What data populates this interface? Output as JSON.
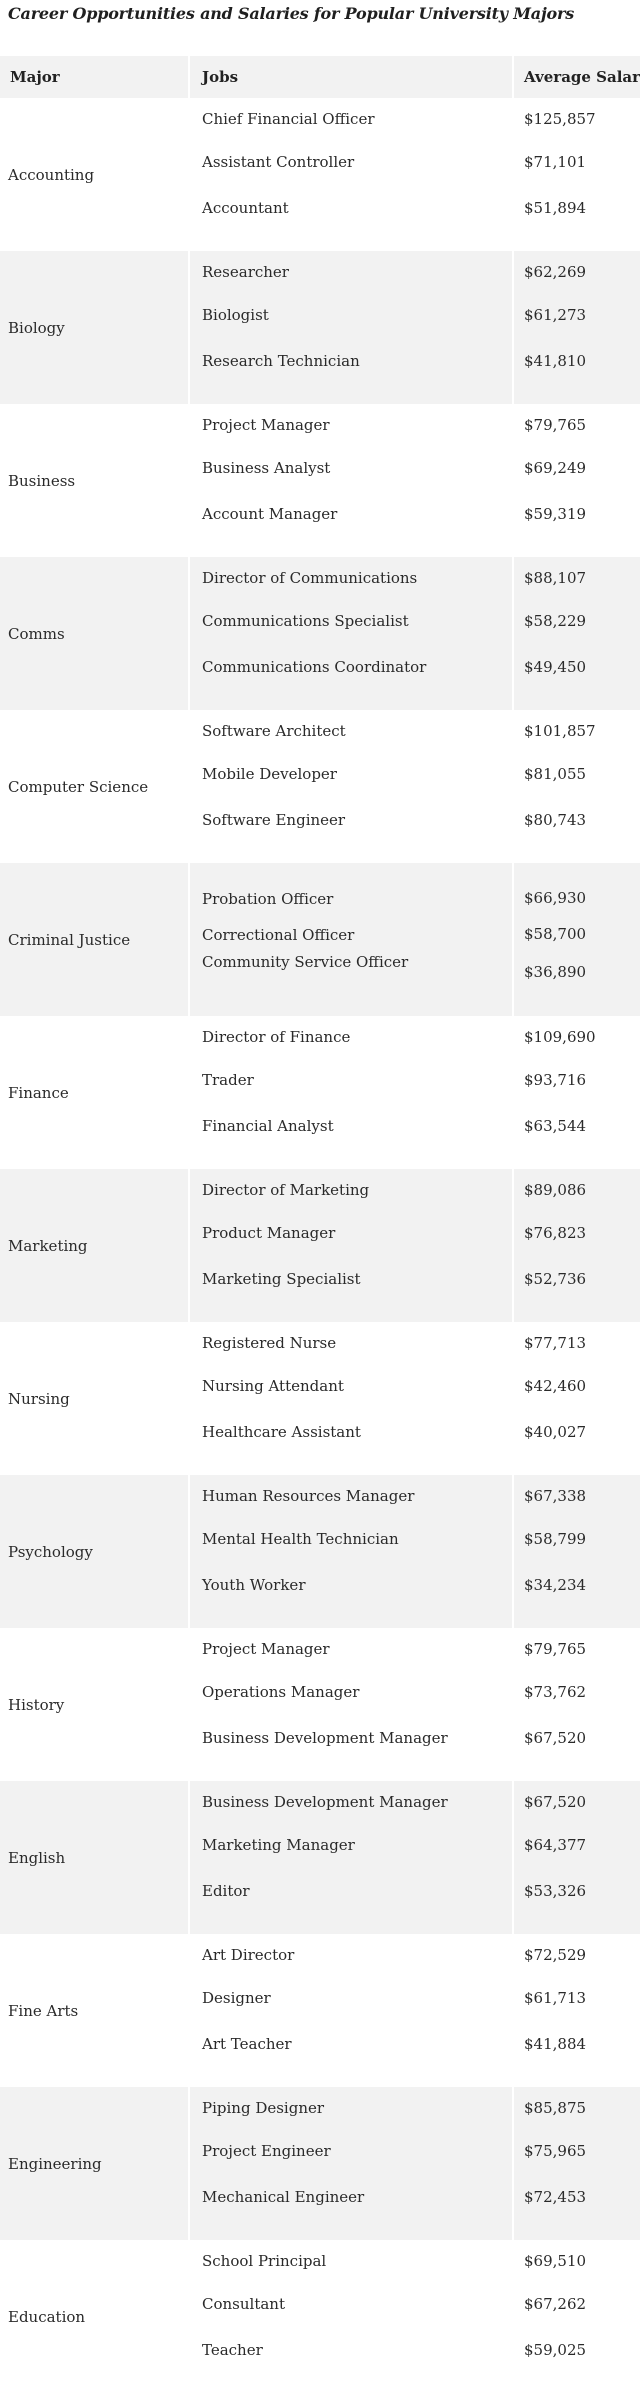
{
  "title": "Career Opportunities and Salaries for Popular University Majors",
  "headers": {
    "major": "Major",
    "jobs": "Jobs",
    "salary": "Average Salary"
  },
  "rows": [
    {
      "major": "Accounting",
      "jobs": [
        "Chief Financial Officer",
        "Assistant Controller",
        "Accountant"
      ],
      "salaries": [
        "$125,857",
        "$71,101",
        "$51,894"
      ]
    },
    {
      "major": "Biology",
      "jobs": [
        "Researcher",
        "Biologist",
        "Research Technician"
      ],
      "salaries": [
        "$62,269",
        "$61,273",
        "$41,810"
      ]
    },
    {
      "major": "Business",
      "jobs": [
        "Project Manager",
        "Business Analyst",
        "Account Manager"
      ],
      "salaries": [
        "$79,765",
        "$69,249",
        "$59,319"
      ]
    },
    {
      "major": "Comms",
      "jobs": [
        "Director of Communications",
        "Communications Specialist",
        "Communications Coordinator"
      ],
      "salaries": [
        "$88,107",
        "$58,229",
        "$49,450"
      ]
    },
    {
      "major": "Computer Science",
      "jobs": [
        "Software Architect",
        "Mobile Developer",
        "Software Engineer"
      ],
      "salaries": [
        "$101,857",
        "$81,055",
        "$80,743"
      ]
    },
    {
      "major": "Criminal Justice",
      "jobs": [
        "Probation Officer",
        "Correctional Officer",
        "Community Service Officer"
      ],
      "salaries": [
        "$66,930",
        "$58,700",
        "$36,890"
      ]
    },
    {
      "major": "Finance",
      "jobs": [
        "Director of Finance",
        "Trader",
        "Financial Analyst"
      ],
      "salaries": [
        "$109,690",
        "$93,716",
        "$63,544"
      ]
    },
    {
      "major": "Marketing",
      "jobs": [
        "Director of Marketing",
        "Product Manager",
        "Marketing Specialist"
      ],
      "salaries": [
        "$89,086",
        "$76,823",
        "$52,736"
      ]
    },
    {
      "major": "Nursing",
      "jobs": [
        "Registered Nurse",
        "Nursing Attendant",
        "Healthcare Assistant"
      ],
      "salaries": [
        "$77,713",
        "$42,460",
        "$40,027"
      ]
    },
    {
      "major": "Psychology",
      "jobs": [
        "Human Resources Manager",
        "Mental Health Technician",
        "Youth Worker"
      ],
      "salaries": [
        "$67,338",
        "$58,799",
        "$34,234"
      ]
    },
    {
      "major": "History",
      "jobs": [
        "Project Manager",
        "Operations Manager",
        "Business Development Manager"
      ],
      "salaries": [
        "$79,765",
        "$73,762",
        "$67,520"
      ]
    },
    {
      "major": "English",
      "jobs": [
        "Business Development Manager",
        "Marketing Manager",
        "Editor"
      ],
      "salaries": [
        "$67,520",
        "$64,377",
        "$53,326"
      ]
    },
    {
      "major": "Fine Arts",
      "jobs": [
        "Art Director",
        "Designer",
        "Art Teacher"
      ],
      "salaries": [
        "$72,529",
        "$61,713",
        "$41,884"
      ]
    },
    {
      "major": "Engineering",
      "jobs": [
        "Piping Designer",
        "Project Engineer",
        "Mechanical Engineer"
      ],
      "salaries": [
        "$85,875",
        "$75,965",
        "$72,453"
      ]
    },
    {
      "major": "Education",
      "jobs": [
        "School Principal",
        "Consultant",
        "Teacher"
      ],
      "salaries": [
        "$69,510",
        "$67,262",
        "$59,025"
      ]
    }
  ]
}
